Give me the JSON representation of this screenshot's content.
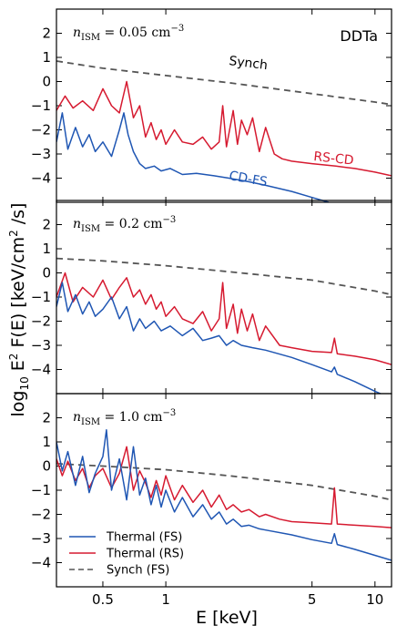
{
  "chart_data": {
    "type": "line",
    "xlabel": "E [keV]",
    "ylabel": "log10 E² F(E) [keV/cm² /s]",
    "xscale": "log",
    "xlim": [
      0.3,
      12
    ],
    "xticks": [
      {
        "value": 0.5,
        "label": "0.5"
      },
      {
        "value": 1,
        "label": "1"
      },
      {
        "value": 5,
        "label": "5"
      },
      {
        "value": 10,
        "label": "10"
      }
    ],
    "ylim": [
      -5,
      3
    ],
    "yticks": [
      -4,
      -3,
      -2,
      -1,
      0,
      1,
      2
    ],
    "model_label": "DDTa",
    "colors": {
      "thermal_fs": "#1f56b3",
      "thermal_rs": "#d61a30",
      "synch_fs": "#555555"
    },
    "legend": {
      "placement": "lower-left",
      "entries": [
        "Thermal (FS)",
        "Thermal (RS)",
        "Synch (FS)"
      ]
    },
    "panels": [
      {
        "annotation": {
          "n": "n",
          "sub": "ISM",
          "rest": " = 0.05 cm",
          "exp": "−3"
        },
        "labels": {
          "synch": "Synch",
          "rs": "RS-CD",
          "fs": "CD-FS"
        },
        "series": [
          {
            "name": "Synch (FS)",
            "x": [
              0.3,
              0.5,
              1,
              2,
              5,
              10,
              12
            ],
            "y": [
              0.85,
              0.55,
              0.25,
              -0.05,
              -0.5,
              -0.85,
              -0.95
            ]
          },
          {
            "name": "Thermal (RS)",
            "x": [
              0.3,
              0.33,
              0.36,
              0.4,
              0.45,
              0.5,
              0.55,
              0.6,
              0.65,
              0.7,
              0.75,
              0.8,
              0.85,
              0.9,
              0.95,
              1.0,
              1.1,
              1.2,
              1.35,
              1.5,
              1.65,
              1.8,
              1.87,
              1.95,
              2.1,
              2.2,
              2.3,
              2.45,
              2.6,
              2.8,
              3.0,
              3.3,
              3.6,
              4.0,
              5.0,
              6.5,
              8.0,
              10.0,
              12.0
            ],
            "y": [
              -1.2,
              -0.6,
              -1.1,
              -0.8,
              -1.2,
              -0.3,
              -1.0,
              -1.3,
              0.0,
              -1.5,
              -1.0,
              -2.3,
              -1.7,
              -2.4,
              -2.0,
              -2.6,
              -2.0,
              -2.5,
              -2.6,
              -2.3,
              -2.8,
              -2.5,
              -1.0,
              -2.7,
              -1.2,
              -2.6,
              -1.6,
              -2.2,
              -1.5,
              -2.9,
              -1.9,
              -3.0,
              -3.2,
              -3.3,
              -3.4,
              -3.5,
              -3.6,
              -3.75,
              -3.9
            ]
          },
          {
            "name": "Thermal (FS)",
            "x": [
              0.3,
              0.32,
              0.34,
              0.37,
              0.4,
              0.43,
              0.46,
              0.5,
              0.55,
              0.6,
              0.63,
              0.66,
              0.7,
              0.75,
              0.8,
              0.88,
              0.95,
              1.05,
              1.2,
              1.4,
              1.7,
              2.0,
              2.5,
              3.0,
              4.0,
              5.0,
              6.0
            ],
            "y": [
              -2.5,
              -1.3,
              -2.8,
              -1.9,
              -2.7,
              -2.2,
              -2.9,
              -2.5,
              -3.1,
              -2.0,
              -1.3,
              -2.2,
              -2.9,
              -3.4,
              -3.6,
              -3.5,
              -3.7,
              -3.6,
              -3.85,
              -3.8,
              -3.9,
              -4.0,
              -4.15,
              -4.3,
              -4.55,
              -4.8,
              -5.0
            ]
          }
        ]
      },
      {
        "annotation": {
          "n": "n",
          "sub": "ISM",
          "rest": " = 0.2 cm",
          "exp": "−3"
        },
        "series": [
          {
            "name": "Synch (FS)",
            "x": [
              0.3,
              0.5,
              1,
              2,
              5,
              10,
              12
            ],
            "y": [
              0.6,
              0.5,
              0.3,
              0.05,
              -0.3,
              -0.75,
              -0.9
            ]
          },
          {
            "name": "Thermal (RS)",
            "x": [
              0.3,
              0.33,
              0.36,
              0.4,
              0.45,
              0.5,
              0.55,
              0.6,
              0.65,
              0.7,
              0.75,
              0.8,
              0.85,
              0.9,
              0.95,
              1.0,
              1.1,
              1.2,
              1.35,
              1.5,
              1.65,
              1.8,
              1.87,
              1.95,
              2.1,
              2.2,
              2.3,
              2.45,
              2.6,
              2.8,
              3.0,
              3.5,
              4.0,
              5.0,
              6.2,
              6.4,
              6.6,
              8.0,
              10.0,
              12.0
            ],
            "y": [
              -1.0,
              0.0,
              -1.2,
              -0.6,
              -1.0,
              -0.3,
              -1.1,
              -0.6,
              -0.2,
              -1.0,
              -0.7,
              -1.3,
              -0.9,
              -1.5,
              -1.2,
              -1.8,
              -1.4,
              -1.9,
              -2.1,
              -1.6,
              -2.4,
              -1.9,
              -0.4,
              -2.3,
              -1.3,
              -2.5,
              -1.5,
              -2.4,
              -1.7,
              -2.8,
              -2.2,
              -3.0,
              -3.1,
              -3.25,
              -3.3,
              -2.7,
              -3.35,
              -3.45,
              -3.6,
              -3.8
            ]
          },
          {
            "name": "Thermal (FS)",
            "x": [
              0.3,
              0.32,
              0.34,
              0.37,
              0.4,
              0.43,
              0.46,
              0.5,
              0.55,
              0.6,
              0.65,
              0.7,
              0.75,
              0.8,
              0.88,
              0.95,
              1.05,
              1.2,
              1.35,
              1.5,
              1.65,
              1.8,
              1.95,
              2.1,
              2.3,
              2.6,
              3.0,
              4.0,
              5.0,
              6.2,
              6.4,
              6.6,
              8.0,
              10.0,
              12.0
            ],
            "y": [
              -1.4,
              -0.4,
              -1.6,
              -0.9,
              -1.7,
              -1.2,
              -1.8,
              -1.5,
              -1.0,
              -1.9,
              -1.4,
              -2.4,
              -1.9,
              -2.3,
              -2.0,
              -2.4,
              -2.2,
              -2.6,
              -2.3,
              -2.8,
              -2.7,
              -2.6,
              -3.0,
              -2.8,
              -3.0,
              -3.1,
              -3.2,
              -3.5,
              -3.8,
              -4.1,
              -3.9,
              -4.2,
              -4.5,
              -4.9,
              -5.2
            ]
          }
        ]
      },
      {
        "annotation": {
          "n": "n",
          "sub": "ISM",
          "rest": " = 1.0 cm",
          "exp": "−3"
        },
        "series": [
          {
            "name": "Synch (FS)",
            "x": [
              0.3,
              0.5,
              1,
              2,
              5,
              10,
              12
            ],
            "y": [
              0.1,
              0.0,
              -0.15,
              -0.4,
              -0.8,
              -1.25,
              -1.4
            ]
          },
          {
            "name": "Thermal (RS)",
            "x": [
              0.3,
              0.32,
              0.34,
              0.37,
              0.4,
              0.43,
              0.46,
              0.5,
              0.55,
              0.6,
              0.65,
              0.7,
              0.75,
              0.8,
              0.85,
              0.9,
              0.95,
              1.0,
              1.1,
              1.2,
              1.35,
              1.5,
              1.65,
              1.8,
              1.95,
              2.1,
              2.3,
              2.5,
              2.8,
              3.0,
              3.5,
              4.0,
              5.0,
              6.2,
              6.4,
              6.6,
              8.0,
              10.0,
              12.0
            ],
            "y": [
              0.3,
              -0.4,
              0.2,
              -0.6,
              -0.1,
              -0.9,
              -0.4,
              -0.1,
              -0.9,
              -0.3,
              0.8,
              -1.0,
              -0.2,
              -0.7,
              -1.3,
              -0.6,
              -1.2,
              -0.4,
              -1.4,
              -0.8,
              -1.5,
              -1.0,
              -1.7,
              -1.2,
              -1.8,
              -1.6,
              -1.9,
              -1.8,
              -2.1,
              -2.0,
              -2.2,
              -2.3,
              -2.35,
              -2.4,
              -0.9,
              -2.4,
              -2.45,
              -2.5,
              -2.55
            ]
          },
          {
            "name": "Thermal (FS)",
            "x": [
              0.3,
              0.32,
              0.34,
              0.37,
              0.4,
              0.43,
              0.46,
              0.5,
              0.52,
              0.55,
              0.6,
              0.65,
              0.7,
              0.75,
              0.8,
              0.85,
              0.9,
              0.95,
              1.0,
              1.1,
              1.2,
              1.35,
              1.5,
              1.65,
              1.8,
              1.95,
              2.1,
              2.3,
              2.5,
              2.8,
              3.0,
              4.0,
              5.0,
              6.2,
              6.4,
              6.6,
              8.0,
              10.0,
              12.0
            ],
            "y": [
              1.0,
              -0.2,
              0.6,
              -0.8,
              0.4,
              -1.1,
              -0.3,
              0.4,
              1.5,
              -1.0,
              0.3,
              -1.4,
              0.8,
              -1.2,
              -0.5,
              -1.6,
              -0.8,
              -1.7,
              -1.0,
              -1.9,
              -1.3,
              -2.1,
              -1.6,
              -2.2,
              -1.9,
              -2.4,
              -2.2,
              -2.5,
              -2.45,
              -2.6,
              -2.65,
              -2.85,
              -3.05,
              -3.2,
              -2.8,
              -3.25,
              -3.45,
              -3.7,
              -3.9
            ]
          }
        ]
      }
    ]
  }
}
